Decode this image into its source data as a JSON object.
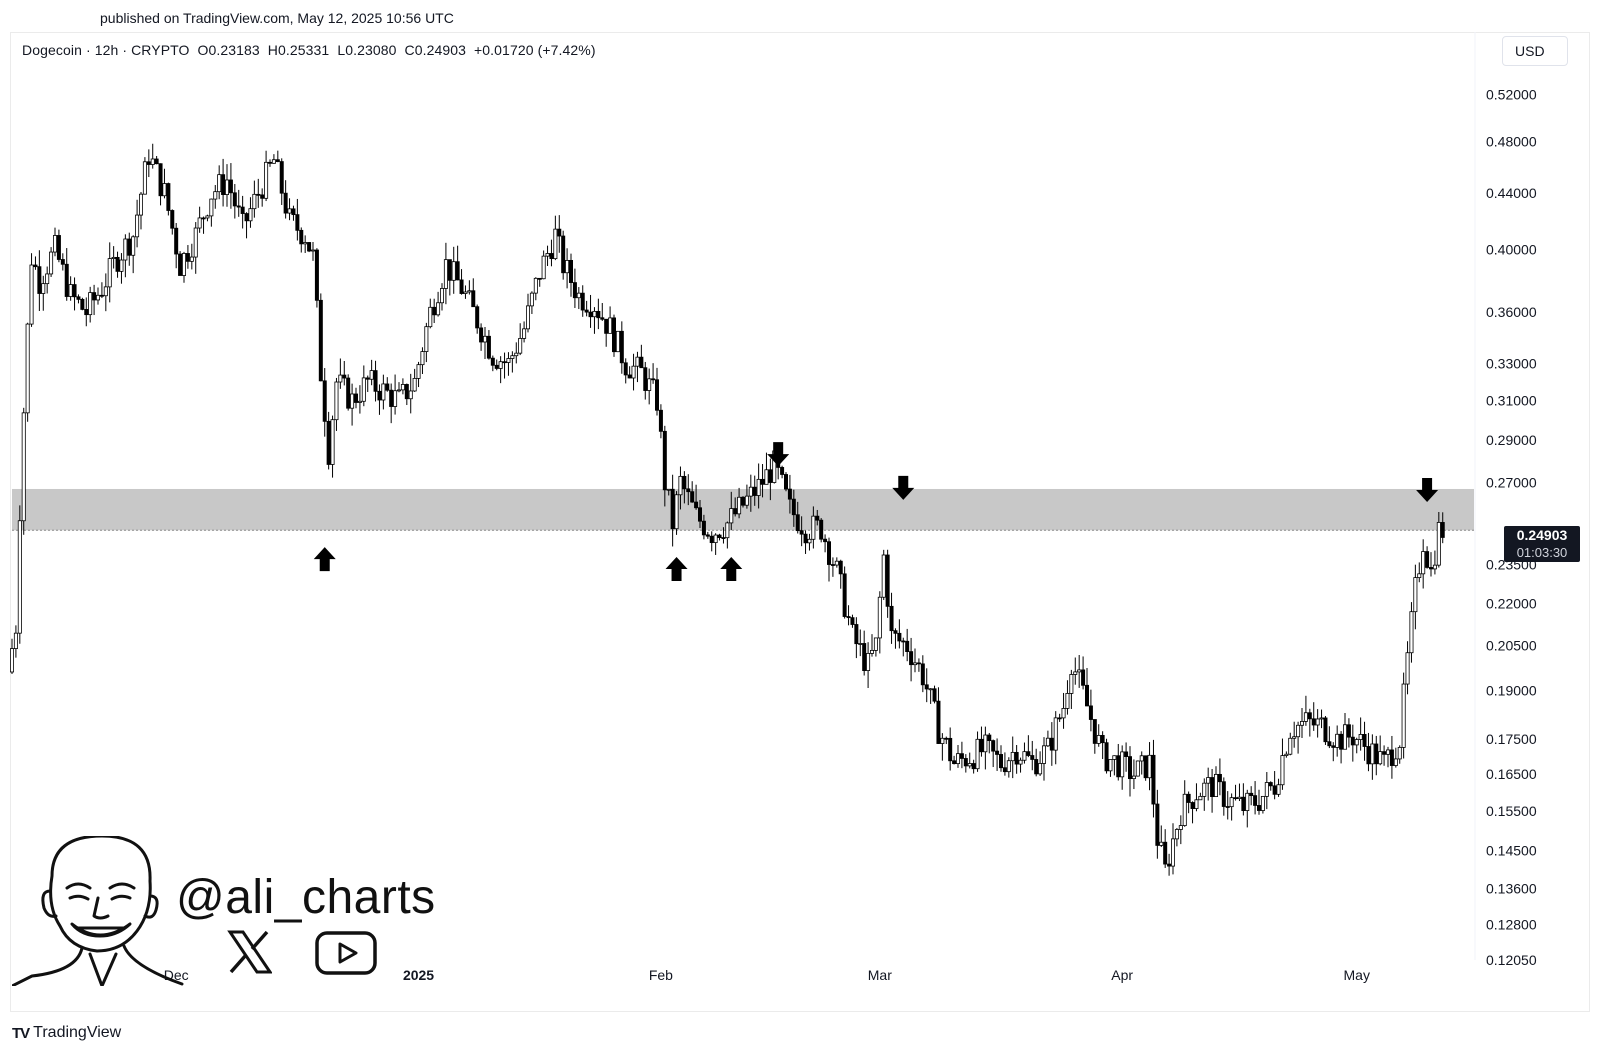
{
  "header": {
    "published": "published on TradingView.com, May 12, 2025 10:56 UTC"
  },
  "legend": {
    "symbol": "Dogecoin · 12h · CRYPTO",
    "open": "O0.23183",
    "high": "H0.25331",
    "low": "L0.23080",
    "close": "C0.24903",
    "change": "+0.01720 (+7.42%)"
  },
  "currency": "USD",
  "price_label": {
    "value": "0.24903",
    "countdown": "01:03:30"
  },
  "watermark": {
    "handle": "@ali_charts"
  },
  "footer": {
    "brand": "TradingView"
  },
  "colors": {
    "candle": "#000000",
    "zone": "#c8c8c8",
    "text": "#131722",
    "label_bg": "#131722"
  },
  "chart_data": {
    "type": "candlestick",
    "title": "Dogecoin · 12h · CRYPTO",
    "y_scale": "log",
    "ylim": [
      0.1205,
      0.54
    ],
    "y_ticks": [
      0.52,
      0.48,
      0.44,
      0.4,
      0.36,
      0.33,
      0.31,
      0.29,
      0.27,
      0.25,
      0.235,
      0.22,
      0.205,
      0.19,
      0.175,
      0.165,
      0.155,
      0.145,
      0.136,
      0.128,
      0.1205
    ],
    "y_tick_labels": [
      "0.52000",
      "0.48000",
      "0.44000",
      "0.40000",
      "0.36000",
      "0.33000",
      "0.31000",
      "0.29000",
      "0.27000",
      "0.25000",
      "0.23500",
      "0.22000",
      "0.20500",
      "0.19000",
      "0.17500",
      "0.16500",
      "0.15500",
      "0.14500",
      "0.13600",
      "0.12800",
      "0.12050"
    ],
    "x_labels": [
      {
        "label": "Dec",
        "date": "2024-12-01"
      },
      {
        "label": "2025",
        "date": "2025-01-01"
      },
      {
        "label": "Feb",
        "date": "2025-02-01"
      },
      {
        "label": "Mar",
        "date": "2025-03-01"
      },
      {
        "label": "Apr",
        "date": "2025-04-01"
      },
      {
        "label": "May",
        "date": "2025-05-01"
      }
    ],
    "x_range": [
      "2024-11-10",
      "2025-05-16"
    ],
    "resistance_zone": [
      0.249,
      0.267
    ],
    "markers": [
      {
        "direction": "up",
        "date": "2024-12-20",
        "price": 0.242
      },
      {
        "direction": "up",
        "date": "2025-02-03",
        "price": 0.238
      },
      {
        "direction": "up",
        "date": "2025-02-10",
        "price": 0.238
      },
      {
        "direction": "down",
        "date": "2025-02-16",
        "price": 0.289
      },
      {
        "direction": "down",
        "date": "2025-03-04",
        "price": 0.273
      },
      {
        "direction": "down",
        "date": "2025-05-10",
        "price": 0.272
      }
    ],
    "price_path": [
      [
        "2024-11-10",
        0.196
      ],
      [
        "2024-11-11",
        0.212
      ],
      [
        "2024-11-12",
        0.305
      ],
      [
        "2024-11-13",
        0.395
      ],
      [
        "2024-11-14",
        0.38
      ],
      [
        "2024-11-16",
        0.4
      ],
      [
        "2024-11-18",
        0.37
      ],
      [
        "2024-11-20",
        0.36
      ],
      [
        "2024-11-22",
        0.375
      ],
      [
        "2024-11-24",
        0.395
      ],
      [
        "2024-11-26",
        0.41
      ],
      [
        "2024-11-28",
        0.47
      ],
      [
        "2024-11-30",
        0.44
      ],
      [
        "2024-12-02",
        0.39
      ],
      [
        "2024-12-04",
        0.41
      ],
      [
        "2024-12-06",
        0.44
      ],
      [
        "2024-12-08",
        0.45
      ],
      [
        "2024-12-10",
        0.415
      ],
      [
        "2024-12-12",
        0.44
      ],
      [
        "2024-12-14",
        0.465
      ],
      [
        "2024-12-16",
        0.42
      ],
      [
        "2024-12-18",
        0.41
      ],
      [
        "2024-12-19",
        0.395
      ],
      [
        "2024-12-20",
        0.325
      ],
      [
        "2024-12-21",
        0.285
      ],
      [
        "2024-12-22",
        0.32
      ],
      [
        "2024-12-24",
        0.31
      ],
      [
        "2024-12-26",
        0.32
      ],
      [
        "2024-12-28",
        0.315
      ],
      [
        "2024-12-30",
        0.31
      ],
      [
        "2025-01-01",
        0.32
      ],
      [
        "2025-01-03",
        0.36
      ],
      [
        "2025-01-05",
        0.39
      ],
      [
        "2025-01-07",
        0.375
      ],
      [
        "2025-01-09",
        0.355
      ],
      [
        "2025-01-11",
        0.335
      ],
      [
        "2025-01-13",
        0.33
      ],
      [
        "2025-01-15",
        0.35
      ],
      [
        "2025-01-17",
        0.385
      ],
      [
        "2025-01-19",
        0.41
      ],
      [
        "2025-01-20",
        0.39
      ],
      [
        "2025-01-22",
        0.37
      ],
      [
        "2025-01-24",
        0.365
      ],
      [
        "2025-01-26",
        0.35
      ],
      [
        "2025-01-28",
        0.33
      ],
      [
        "2025-01-30",
        0.325
      ],
      [
        "2025-02-01",
        0.31
      ],
      [
        "2025-02-02",
        0.27
      ],
      [
        "2025-02-03",
        0.252
      ],
      [
        "2025-02-04",
        0.27
      ],
      [
        "2025-02-06",
        0.255
      ],
      [
        "2025-02-08",
        0.248
      ],
      [
        "2025-02-10",
        0.252
      ],
      [
        "2025-02-12",
        0.26
      ],
      [
        "2025-02-14",
        0.268
      ],
      [
        "2025-02-16",
        0.278
      ],
      [
        "2025-02-18",
        0.258
      ],
      [
        "2025-02-20",
        0.25
      ],
      [
        "2025-02-22",
        0.25
      ],
      [
        "2025-02-24",
        0.232
      ],
      [
        "2025-02-26",
        0.208
      ],
      [
        "2025-02-28",
        0.198
      ],
      [
        "2025-03-01",
        0.205
      ],
      [
        "2025-03-02",
        0.238
      ],
      [
        "2025-03-03",
        0.208
      ],
      [
        "2025-03-05",
        0.205
      ],
      [
        "2025-03-07",
        0.195
      ],
      [
        "2025-03-09",
        0.178
      ],
      [
        "2025-03-11",
        0.168
      ],
      [
        "2025-03-13",
        0.17
      ],
      [
        "2025-03-15",
        0.172
      ],
      [
        "2025-03-17",
        0.168
      ],
      [
        "2025-03-19",
        0.172
      ],
      [
        "2025-03-21",
        0.168
      ],
      [
        "2025-03-23",
        0.172
      ],
      [
        "2025-03-25",
        0.185
      ],
      [
        "2025-03-26",
        0.2
      ],
      [
        "2025-03-28",
        0.185
      ],
      [
        "2025-03-30",
        0.17
      ],
      [
        "2025-04-01",
        0.168
      ],
      [
        "2025-04-03",
        0.165
      ],
      [
        "2025-04-05",
        0.168
      ],
      [
        "2025-04-06",
        0.148
      ],
      [
        "2025-04-07",
        0.14
      ],
      [
        "2025-04-09",
        0.155
      ],
      [
        "2025-04-11",
        0.16
      ],
      [
        "2025-04-13",
        0.162
      ],
      [
        "2025-04-15",
        0.158
      ],
      [
        "2025-04-17",
        0.156
      ],
      [
        "2025-04-19",
        0.158
      ],
      [
        "2025-04-21",
        0.162
      ],
      [
        "2025-04-23",
        0.178
      ],
      [
        "2025-04-25",
        0.18
      ],
      [
        "2025-04-27",
        0.179
      ],
      [
        "2025-04-29",
        0.175
      ],
      [
        "2025-05-01",
        0.176
      ],
      [
        "2025-05-03",
        0.172
      ],
      [
        "2025-05-05",
        0.168
      ],
      [
        "2025-05-07",
        0.175
      ],
      [
        "2025-05-08",
        0.2
      ],
      [
        "2025-05-09",
        0.225
      ],
      [
        "2025-05-10",
        0.245
      ],
      [
        "2025-05-11",
        0.232
      ],
      [
        "2025-05-12",
        0.249
      ]
    ]
  }
}
